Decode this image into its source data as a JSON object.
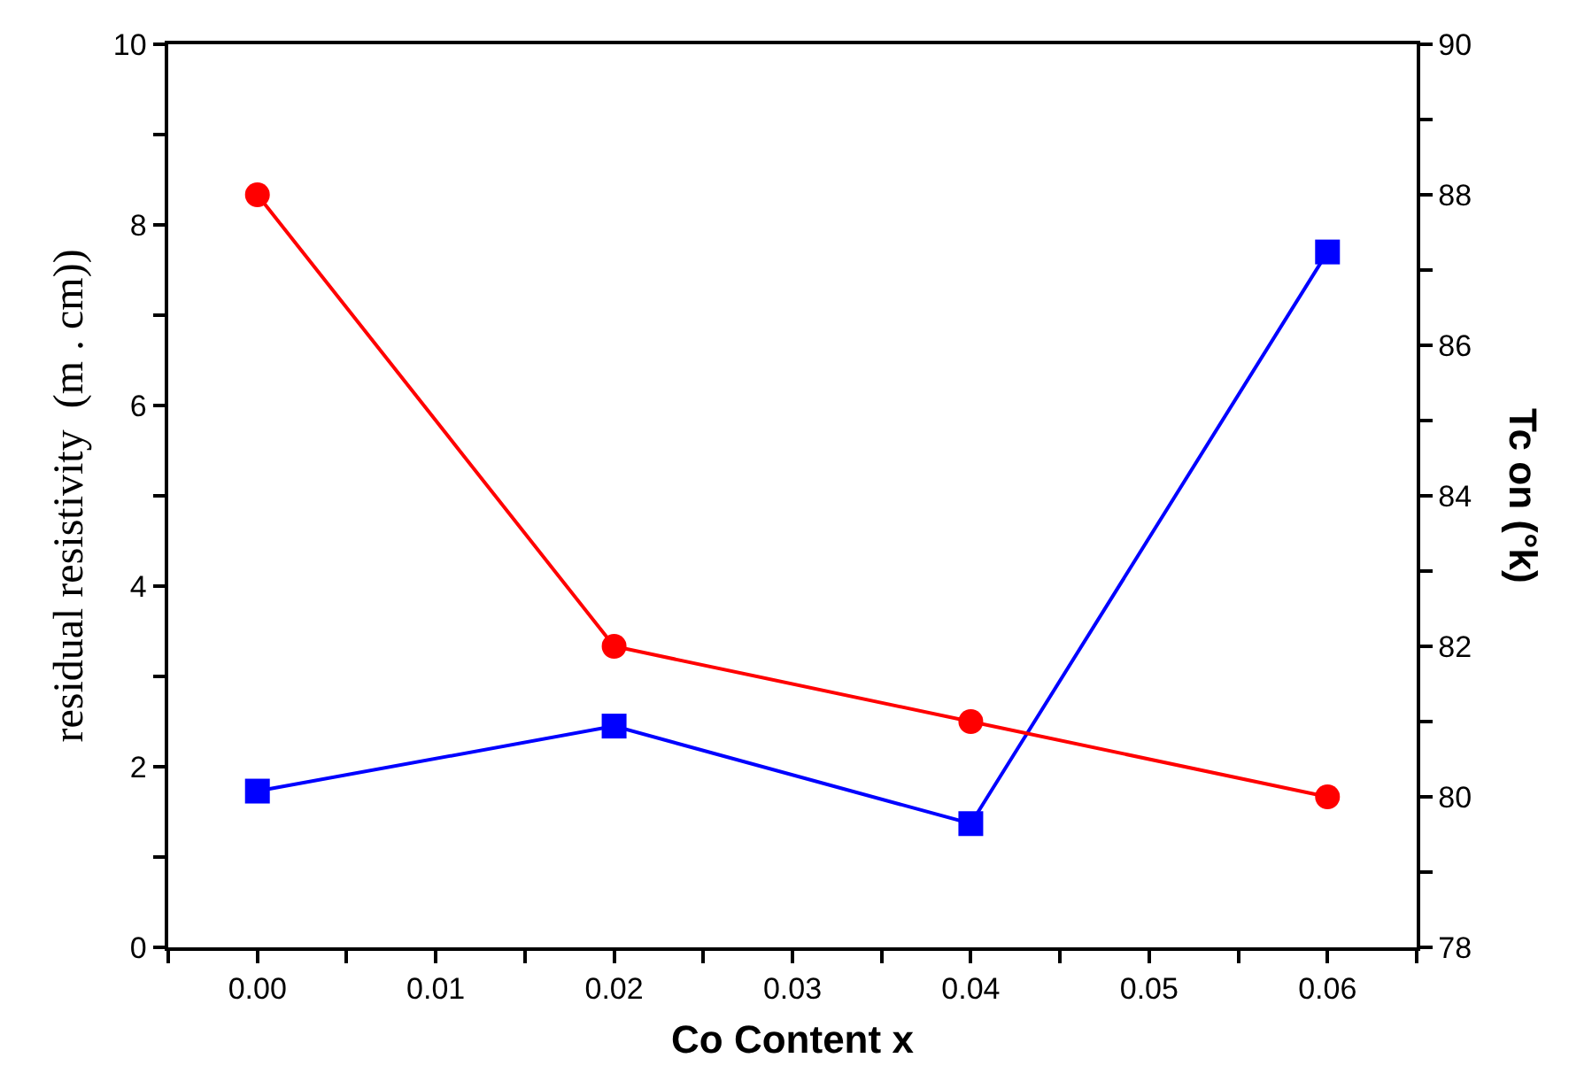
{
  "chart_data": {
    "type": "line",
    "xlabel": "Co Content x",
    "ylabel": "residual resistivity  (m . cm))",
    "y2label": "Tc on (°k)",
    "x": [
      0,
      0.02,
      0.04,
      0.06
    ],
    "series": [
      {
        "color": "#0000ff",
        "values": [
          1.73,
          2.45,
          1.37,
          7.7
        ],
        "marker": "square"
      },
      {
        "color": "#ff0000",
        "values": [
          88,
          82,
          81,
          80
        ],
        "axis": "y2",
        "marker": "circle"
      }
    ],
    "xlim": [
      -0.005,
      0.065
    ],
    "xticks": [
      {
        "value": -0.005,
        "label": null
      },
      {
        "value": 0,
        "label": "0.00"
      },
      {
        "value": 0.005,
        "label": null
      },
      {
        "value": 0.01,
        "label": "0.01"
      },
      {
        "value": 0.015,
        "label": null
      },
      {
        "value": 0.02,
        "label": "0.02"
      },
      {
        "value": 0.025,
        "label": null
      },
      {
        "value": 0.03,
        "label": "0.03"
      },
      {
        "value": 0.035,
        "label": null
      },
      {
        "value": 0.04,
        "label": "0.04"
      },
      {
        "value": 0.045,
        "label": null
      },
      {
        "value": 0.05,
        "label": "0.05"
      },
      {
        "value": 0.055,
        "label": null
      },
      {
        "value": 0.06,
        "label": "0.06"
      },
      {
        "value": 0.065,
        "label": null
      }
    ],
    "ylim": [
      0,
      10
    ],
    "yticks": [
      0,
      {
        "value": 1,
        "label": null
      },
      2,
      {
        "value": 3,
        "label": null
      },
      4,
      {
        "value": 5,
        "label": null
      },
      6,
      {
        "value": 7,
        "label": null
      },
      8,
      {
        "value": 9,
        "label": null
      },
      10
    ],
    "y2lim": [
      78,
      90
    ],
    "y2ticks": [
      78,
      {
        "value": 79,
        "label": null
      },
      80,
      {
        "value": 81,
        "label": null
      },
      82,
      {
        "value": 83,
        "label": null
      },
      84,
      {
        "value": 85,
        "label": null
      },
      86,
      {
        "value": 87,
        "label": null
      },
      88,
      {
        "value": 89,
        "label": null
      },
      90
    ],
    "line_style": "solid"
  }
}
